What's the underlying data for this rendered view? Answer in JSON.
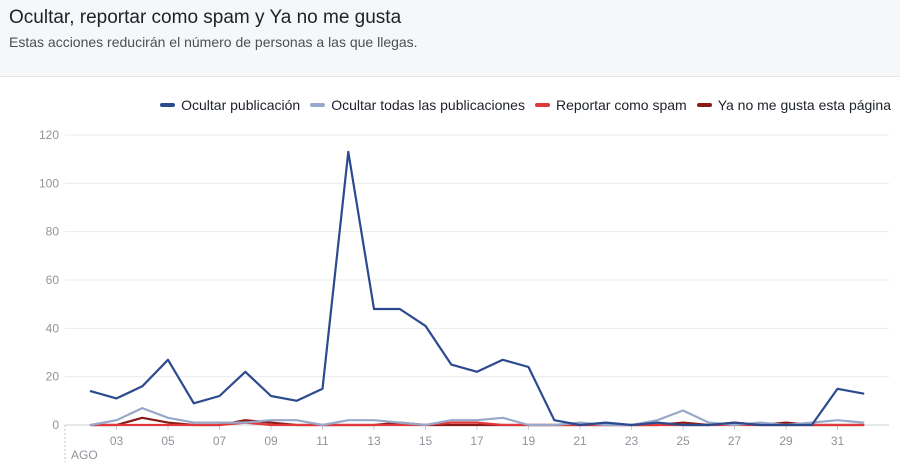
{
  "header": {
    "title": "Ocultar, reportar como spam y Ya no me gusta",
    "subtitle": "Estas acciones reducirán el número de personas a las que llegas."
  },
  "chart_data": {
    "type": "line",
    "x": [
      2,
      3,
      4,
      5,
      6,
      7,
      8,
      9,
      10,
      11,
      12,
      13,
      14,
      15,
      16,
      17,
      18,
      19,
      20,
      21,
      22,
      23,
      24,
      25,
      26,
      27,
      28,
      29,
      30,
      31,
      32
    ],
    "x_tick_labels": [
      "03",
      "05",
      "07",
      "09",
      "11",
      "13",
      "15",
      "17",
      "19",
      "21",
      "23",
      "25",
      "27",
      "29",
      "31"
    ],
    "x_tick_values": [
      3,
      5,
      7,
      9,
      11,
      13,
      15,
      17,
      19,
      21,
      23,
      25,
      27,
      29,
      31
    ],
    "x_month_label": "AGO",
    "ylim": [
      0,
      120
    ],
    "y_ticks": [
      0,
      20,
      40,
      60,
      80,
      100,
      120
    ],
    "series": [
      {
        "name": "Ocultar publicación",
        "color": "#2c4a8e",
        "values": [
          14,
          11,
          16,
          27,
          9,
          12,
          22,
          12,
          10,
          15,
          113,
          48,
          48,
          41,
          25,
          22,
          27,
          24,
          2,
          0,
          1,
          0,
          1,
          0,
          0,
          1,
          0,
          0,
          0,
          15,
          13
        ]
      },
      {
        "name": "Ocultar todas las publicaciones",
        "color": "#98a8c9",
        "values": [
          0,
          2,
          7,
          3,
          1,
          1,
          1,
          2,
          2,
          0,
          2,
          2,
          1,
          0,
          2,
          2,
          3,
          0,
          0,
          1,
          0,
          0,
          2,
          6,
          1,
          0,
          1,
          0,
          1,
          2,
          1
        ]
      },
      {
        "name": "Reportar como spam",
        "color": "#e0393b",
        "values": [
          0,
          0,
          0,
          0,
          0,
          0,
          1,
          0,
          0,
          0,
          0,
          0,
          0,
          0,
          1,
          1,
          0,
          0,
          0,
          0,
          0,
          0,
          0,
          0,
          0,
          0,
          0,
          0,
          0,
          0,
          0
        ]
      },
      {
        "name": "Ya no me gusta esta página",
        "color": "#8b1a1a",
        "values": [
          0,
          0,
          3,
          1,
          0,
          0,
          2,
          1,
          0,
          0,
          0,
          0,
          1,
          0,
          0,
          0,
          0,
          0,
          0,
          0,
          0,
          0,
          0,
          1,
          0,
          1,
          0,
          1,
          0,
          0,
          0
        ]
      }
    ]
  }
}
